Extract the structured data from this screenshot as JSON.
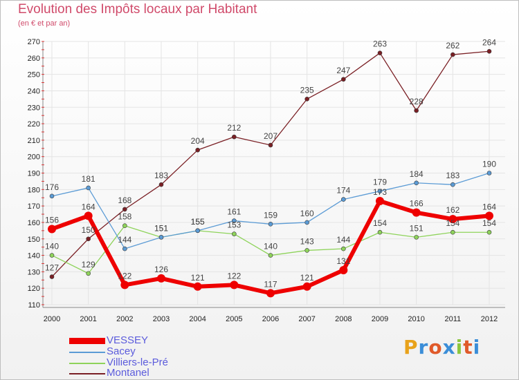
{
  "header": {
    "title": "Evolution des Impôts locaux par Habitant",
    "subtitle": "(en € et par an)"
  },
  "logo": {
    "text": "Proxiti",
    "colors": [
      "#e8a21b",
      "#3b8ed8",
      "#e05a2a",
      "#3b8ed8",
      "#8cc63f",
      "#e05a2a",
      "#3b8ed8"
    ]
  },
  "chart_data": {
    "type": "line",
    "x": [
      "2000",
      "2001",
      "2002",
      "2003",
      "2004",
      "2005",
      "2006",
      "2007",
      "2008",
      "2009",
      "2010",
      "2011",
      "2012"
    ],
    "ylim": [
      110,
      270
    ],
    "yticks": [
      110,
      120,
      130,
      140,
      150,
      160,
      170,
      180,
      190,
      200,
      210,
      220,
      230,
      240,
      250,
      260,
      270
    ],
    "grid": true,
    "legend": "bottom-left",
    "series": [
      {
        "name": "Montanel",
        "color": "#7a1f24",
        "values": [
          127,
          150,
          168,
          183,
          204,
          212,
          207,
          235,
          247,
          263,
          228,
          262,
          264
        ]
      },
      {
        "name": "Villiers-le-Pré",
        "color": "#8ed35a",
        "values": [
          140,
          129,
          158,
          151,
          155,
          153,
          140,
          143,
          144,
          154,
          151,
          154,
          154
        ]
      },
      {
        "name": "Sacey",
        "color": "#5b9bd5",
        "values": [
          176,
          181,
          144,
          151,
          155,
          161,
          159,
          160,
          174,
          179,
          184,
          183,
          190
        ]
      },
      {
        "name": "VESSEY",
        "color": "#ee0000",
        "values": [
          156,
          164,
          122,
          126,
          121,
          122,
          117,
          121,
          131,
          173,
          166,
          162,
          164
        ]
      }
    ]
  }
}
